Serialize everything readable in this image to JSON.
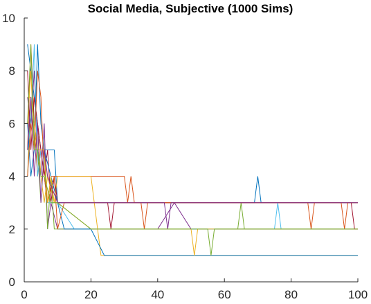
{
  "chart_data": {
    "type": "line",
    "title": "Social Media, Subjective (1000 Sims)",
    "xlabel": "",
    "ylabel": "",
    "xlim": [
      0,
      100
    ],
    "ylim": [
      0,
      10
    ],
    "xticks": [
      "0",
      "20",
      "40",
      "60",
      "80",
      "100"
    ],
    "yticks": [
      "0",
      "2",
      "4",
      "6",
      "8",
      "10"
    ],
    "grid": false,
    "legend": "none",
    "series_colors": [
      "#0072BD",
      "#D95319",
      "#EDB120",
      "#7E2F8E",
      "#77AC30",
      "#4DBEEE",
      "#A2142F"
    ],
    "series": [
      {
        "x": [
          1,
          2,
          3,
          4,
          5,
          6,
          7,
          8,
          9,
          10,
          15,
          20,
          25,
          30,
          40,
          50,
          60,
          69,
          70,
          71,
          80,
          90,
          100
        ],
        "values": [
          9,
          8,
          7,
          6,
          5,
          5,
          5,
          5,
          5,
          3,
          3,
          3,
          3,
          3,
          3,
          3,
          3,
          3,
          4,
          3,
          3,
          3,
          3
        ]
      },
      {
        "x": [
          1,
          2,
          3,
          4,
          5,
          6,
          7,
          8,
          10,
          15,
          20,
          30,
          31,
          32,
          33,
          40,
          60,
          80,
          95,
          96,
          97,
          100
        ],
        "values": [
          5,
          9,
          6,
          4,
          5,
          4,
          3,
          4,
          4,
          4,
          4,
          4,
          3,
          4,
          3,
          3,
          3,
          3,
          3,
          2,
          3,
          3
        ]
      },
      {
        "x": [
          1,
          2,
          3,
          4,
          5,
          6,
          7,
          9,
          10,
          20,
          22,
          23,
          40,
          60,
          80,
          100
        ],
        "values": [
          6,
          8,
          5,
          6,
          4,
          3,
          4,
          3,
          4,
          4,
          2,
          1,
          1,
          1,
          1,
          1
        ]
      },
      {
        "x": [
          1,
          2,
          3,
          4,
          5,
          6,
          7,
          8,
          10,
          20,
          30,
          40,
          45,
          50,
          60,
          80,
          100
        ],
        "values": [
          7,
          6,
          8,
          5,
          4,
          6,
          2,
          3,
          2,
          2,
          2,
          2,
          3,
          2,
          2,
          2,
          2
        ]
      },
      {
        "x": [
          1,
          2,
          3,
          4,
          5,
          6,
          7,
          8,
          9,
          20,
          40,
          60,
          64,
          65,
          66,
          80,
          100
        ],
        "values": [
          4,
          7,
          6,
          5,
          3,
          5,
          2,
          4,
          2,
          2,
          2,
          2,
          2,
          3,
          2,
          2,
          2
        ]
      },
      {
        "x": [
          1,
          2,
          3,
          4,
          5,
          6,
          7,
          10,
          15,
          30,
          50,
          75,
          76,
          77,
          100
        ],
        "values": [
          5,
          6,
          9,
          4,
          5,
          4,
          3,
          3,
          2,
          2,
          2,
          2,
          3,
          2,
          2
        ]
      },
      {
        "x": [
          1,
          2,
          3,
          4,
          5,
          6,
          7,
          8,
          9,
          10,
          25,
          26,
          27,
          50,
          75,
          98,
          99,
          100
        ],
        "values": [
          8,
          5,
          7,
          6,
          5,
          4,
          5,
          3,
          4,
          3,
          3,
          2,
          3,
          3,
          3,
          3,
          2,
          2
        ]
      },
      {
        "x": [
          1,
          2,
          3,
          4,
          5,
          6,
          8,
          10,
          12,
          20,
          24,
          40,
          60,
          80,
          100
        ],
        "values": [
          6,
          4,
          5,
          9,
          6,
          5,
          4,
          3,
          2,
          2,
          1,
          1,
          1,
          1,
          1
        ]
      },
      {
        "x": [
          1,
          2,
          3,
          4,
          5,
          6,
          7,
          9,
          10,
          12,
          35,
          36,
          37,
          60,
          85,
          86,
          87,
          100
        ],
        "values": [
          4,
          6,
          5,
          8,
          7,
          4,
          3,
          4,
          2,
          3,
          3,
          2,
          3,
          3,
          3,
          2,
          3,
          3
        ]
      },
      {
        "x": [
          1,
          2,
          3,
          4,
          5,
          6,
          7,
          8,
          9,
          10,
          20,
          30,
          50,
          51,
          52,
          70,
          90,
          100
        ],
        "values": [
          7,
          7,
          6,
          5,
          5,
          5,
          3,
          4,
          3,
          3,
          2,
          2,
          2,
          1,
          2,
          2,
          2,
          2
        ]
      },
      {
        "x": [
          1,
          2,
          3,
          4,
          5,
          6,
          7,
          10,
          30,
          42,
          43,
          44,
          70,
          100
        ],
        "values": [
          5,
          7,
          4,
          6,
          3,
          5,
          4,
          3,
          3,
          3,
          2,
          3,
          3,
          3
        ]
      },
      {
        "x": [
          1,
          2,
          3,
          4,
          5,
          6,
          8,
          10,
          20,
          55,
          56,
          57,
          90,
          100
        ],
        "values": [
          6,
          9,
          5,
          5,
          4,
          4,
          3,
          3,
          2,
          2,
          1,
          2,
          2,
          2
        ]
      }
    ]
  }
}
